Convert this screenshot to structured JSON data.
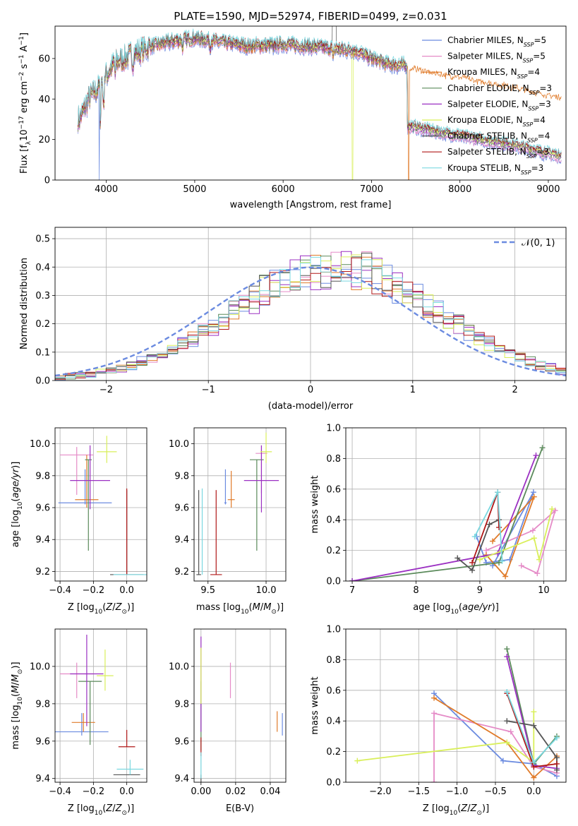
{
  "figure": {
    "title": "PLATE=1590, MJD=52974, FIBERID=0499, z=0.031",
    "colors": [
      "#6b8be0",
      "#e58bc7",
      "#e07b2a",
      "#5a8a5a",
      "#9b30c2",
      "#d9ef5a",
      "#555555",
      "#b01818",
      "#7ad8e0"
    ]
  },
  "chart_data": [
    {
      "id": "spectrum",
      "type": "line",
      "title": "PLATE=1590, MJD=52974, FIBERID=0499, z=0.031",
      "xlabel": "wavelength [Angstrom, rest frame]",
      "ylabel": "Flux [f",
      "ylabel_parts": [
        "Flux [f",
        "λ",
        "10",
        "−17",
        " erg cm",
        "−2",
        " s",
        "−1",
        " A",
        "−1",
        "]"
      ],
      "xlim": [
        3420,
        9200
      ],
      "ylim": [
        0,
        76
      ],
      "xticks": [
        4000,
        5000,
        6000,
        7000,
        8000,
        9000
      ],
      "yticks": [
        0,
        20,
        40,
        60
      ],
      "grid": false,
      "legend_position": "top-right",
      "legend": [
        {
          "name": "Chabrier MILES",
          "n": "5"
        },
        {
          "name": "Salpeter MILES",
          "n": "5"
        },
        {
          "name": "Kroupa MILES",
          "n": "4"
        },
        {
          "name": "Chabrier ELODIE",
          "n": "3"
        },
        {
          "name": "Salpeter ELODIE",
          "n": "3"
        },
        {
          "name": "Kroupa ELODIE",
          "n": "4"
        },
        {
          "name": "Chabrier STELIB",
          "n": "4"
        },
        {
          "name": "Salpeter STELIB",
          "n": "3"
        },
        {
          "name": "Kroupa STELIB",
          "n": "3"
        }
      ],
      "continuum": {
        "x": [
          3700,
          3800,
          3900,
          4000,
          4100,
          4300,
          4500,
          4700,
          5000,
          5300,
          5600,
          6000,
          6300,
          6500,
          6800,
          7000,
          7200,
          7500,
          7800,
          8000,
          8200,
          8500,
          8800,
          9100
        ],
        "y": [
          30,
          40,
          45,
          52,
          58,
          62,
          66,
          68,
          70,
          68,
          66,
          67,
          66,
          65,
          64,
          60,
          57,
          56,
          53,
          52,
          50,
          48,
          45,
          42
        ]
      },
      "features": {
        "gray_spike_x": [
          6560,
          6600
        ],
        "kroupa_elodie_dropout_x": 6785,
        "kroupa_miles_dropout_x": 7420,
        "blue_dropout_x": 3920
      }
    },
    {
      "id": "residuals",
      "type": "histogram",
      "xlabel": "(data-model)/error",
      "ylabel": "Normed distribution",
      "xlim": [
        -2.5,
        2.5
      ],
      "ylim": [
        0,
        0.54
      ],
      "xticks": [
        -2,
        -1,
        0,
        1,
        2
      ],
      "yticks": [
        0.0,
        0.1,
        0.2,
        0.3,
        0.4,
        0.5
      ],
      "grid": true,
      "legend_position": "top-right",
      "legend_label": "𝒩(0, 1)",
      "bin_width": 0.1,
      "mu": 0.25,
      "sigma": 1.0
    },
    {
      "id": "z-age",
      "type": "errorbar",
      "xlabel": "Z [log",
      "ylabel": "age  [log",
      "xlim": [
        -0.43,
        0.12
      ],
      "ylim": [
        9.14,
        10.1
      ],
      "xticks": [
        -0.4,
        -0.2,
        0.0
      ],
      "yticks": [
        9.2,
        9.4,
        9.6,
        9.8,
        10.0
      ],
      "grid": true,
      "points": [
        {
          "x": -0.25,
          "y": 9.63,
          "xerr": 0.16,
          "yerr_lo": 0.01,
          "yerr_hi": 0.21
        },
        {
          "x": -0.3,
          "y": 9.93,
          "xerr": 0.1,
          "yerr_lo": 0.25,
          "yerr_hi": 0.05
        },
        {
          "x": -0.24,
          "y": 9.65,
          "xerr": 0.07,
          "yerr_lo": 0.05,
          "yerr_hi": 0.28
        },
        {
          "x": -0.23,
          "y": 9.9,
          "xerr": 0.02,
          "yerr_lo": 0.57,
          "yerr_hi": 0.0
        },
        {
          "x": -0.22,
          "y": 9.77,
          "xerr": 0.12,
          "yerr_lo": 0.18,
          "yerr_hi": 0.22
        },
        {
          "x": -0.12,
          "y": 9.95,
          "xerr": 0.06,
          "yerr_lo": 0.07,
          "yerr_hi": 0.1
        },
        {
          "x": 0.0,
          "y": 9.18,
          "xerr": 0.1,
          "yerr_lo": 0.0,
          "yerr_hi": 0.53
        },
        {
          "x": 0.0,
          "y": 9.18,
          "xerr": 0.0,
          "yerr_lo": 0.0,
          "yerr_hi": 0.54
        },
        {
          "x": 0.02,
          "y": 9.18,
          "xerr": 0.1,
          "yerr_lo": 0.0,
          "yerr_hi": 0.0
        }
      ]
    },
    {
      "id": "mass-age",
      "type": "errorbar",
      "xlabel": "mass [log",
      "ylabel": "",
      "xlim": [
        9.38,
        10.17
      ],
      "ylim": [
        9.14,
        10.1
      ],
      "xticks": [
        9.5,
        10.0
      ],
      "yticks": [
        9.2,
        9.4,
        9.6,
        9.8,
        10.0
      ],
      "grid": true,
      "points": [
        {
          "x": 9.65,
          "y": 9.63,
          "xerr": 0.01,
          "yerr_lo": 0.01,
          "yerr_hi": 0.21
        },
        {
          "x": 9.96,
          "y": 9.94,
          "xerr": 0.05,
          "yerr_lo": 0.25,
          "yerr_hi": 0.05
        },
        {
          "x": 9.7,
          "y": 9.65,
          "xerr": 0.03,
          "yerr_lo": 0.05,
          "yerr_hi": 0.18
        },
        {
          "x": 9.92,
          "y": 9.9,
          "xerr": 0.06,
          "yerr_lo": 0.57,
          "yerr_hi": 0.0
        },
        {
          "x": 9.96,
          "y": 9.77,
          "xerr": 0.15,
          "yerr_lo": 0.2,
          "yerr_hi": 0.22
        },
        {
          "x": 10.0,
          "y": 9.95,
          "xerr": 0.05,
          "yerr_lo": 0.07,
          "yerr_hi": 0.12
        },
        {
          "x": 9.42,
          "y": 9.18,
          "xerr": 0.02,
          "yerr_lo": 0.0,
          "yerr_hi": 0.53
        },
        {
          "x": 9.57,
          "y": 9.18,
          "xerr": 0.05,
          "yerr_lo": 0.0,
          "yerr_hi": 0.53
        },
        {
          "x": 9.45,
          "y": 9.18,
          "xerr": 0.0,
          "yerr_lo": 0.0,
          "yerr_hi": 0.54
        }
      ]
    },
    {
      "id": "age-weight",
      "type": "line",
      "xlabel": "age  [log",
      "ylabel": "mass weight",
      "xlim": [
        6.9,
        10.35
      ],
      "ylim": [
        0,
        1
      ],
      "xticks": [
        7,
        8,
        9,
        10
      ],
      "yticks": [
        0.0,
        0.2,
        0.4,
        0.6,
        0.8,
        1.0
      ],
      "grid": true,
      "series": [
        {
          "x": [
            8.95,
            9.1,
            9.47,
            9.84,
            9.2
          ],
          "y": [
            0.29,
            0.12,
            0.14,
            0.58,
            0.1
          ]
        },
        {
          "x": [
            9.65,
            9.9,
            10.18,
            9.83,
            9.1
          ],
          "y": [
            0.1,
            0.05,
            0.46,
            0.33,
            0.2
          ]
        },
        {
          "x": [
            9.1,
            9.4,
            9.85,
            9.2
          ],
          "y": [
            0.17,
            0.03,
            0.55,
            0.26
          ]
        },
        {
          "x": [
            7.0,
            9.3,
            9.98
          ],
          "y": [
            0.0,
            0.12,
            0.87
          ]
        },
        {
          "x": [
            7.0,
            9.28,
            9.88
          ],
          "y": [
            0.0,
            0.18,
            0.82
          ]
        },
        {
          "x": [
            9.0,
            9.85,
            9.93,
            10.13
          ],
          "y": [
            0.14,
            0.28,
            0.14,
            0.47
          ]
        },
        {
          "x": [
            8.65,
            8.88,
            9.15,
            9.3
          ],
          "y": [
            0.15,
            0.07,
            0.37,
            0.4
          ]
        },
        {
          "x": [
            8.88,
            9.28,
            9.3
          ],
          "y": [
            0.12,
            0.58,
            0.35
          ]
        },
        {
          "x": [
            8.92,
            9.28,
            9.35
          ],
          "y": [
            0.29,
            0.58,
            0.13
          ]
        }
      ]
    },
    {
      "id": "z-mass",
      "type": "errorbar",
      "xlabel": "Z [log",
      "ylabel": "mass [log",
      "xlim": [
        -0.43,
        0.12
      ],
      "ylim": [
        9.38,
        10.2
      ],
      "xticks": [
        -0.4,
        -0.2,
        0.0
      ],
      "yticks": [
        9.4,
        9.6,
        9.8,
        10.0
      ],
      "grid": true,
      "points": [
        {
          "x": -0.27,
          "y": 9.65,
          "xerr": 0.16,
          "yerr_lo": 0.02,
          "yerr_hi": 0.1
        },
        {
          "x": -0.3,
          "y": 9.96,
          "xerr": 0.1,
          "yerr_lo": 0.13,
          "yerr_hi": 0.06
        },
        {
          "x": -0.26,
          "y": 9.7,
          "xerr": 0.07,
          "yerr_lo": 0.05,
          "yerr_hi": 0.05
        },
        {
          "x": -0.22,
          "y": 9.92,
          "xerr": 0.07,
          "yerr_lo": 0.34,
          "yerr_hi": 0.0
        },
        {
          "x": -0.24,
          "y": 9.96,
          "xerr": 0.1,
          "yerr_lo": 0.28,
          "yerr_hi": 0.21
        },
        {
          "x": -0.13,
          "y": 9.95,
          "xerr": 0.05,
          "yerr_lo": 0.08,
          "yerr_hi": 0.14
        },
        {
          "x": 0.0,
          "y": 9.42,
          "xerr": 0.08,
          "yerr_lo": 0.0,
          "yerr_hi": 0.0
        },
        {
          "x": 0.0,
          "y": 9.57,
          "xerr": 0.05,
          "yerr_lo": 0.0,
          "yerr_hi": 0.09
        },
        {
          "x": 0.02,
          "y": 9.45,
          "xerr": 0.08,
          "yerr_lo": 0.03,
          "yerr_hi": 0.05
        }
      ]
    },
    {
      "id": "ebv",
      "type": "errorbar",
      "xlabel": "E(B-V)",
      "ylabel": "",
      "xlim": [
        -0.004,
        0.049
      ],
      "ylim": [
        9.38,
        10.2
      ],
      "xticks": [
        0.0,
        0.02,
        0.04
      ],
      "yticks": [
        9.4,
        9.6,
        9.8,
        10.0
      ],
      "grid": true,
      "points": [
        {
          "x": 0.047,
          "y": 9.69,
          "xerr": 0.0,
          "yerr_lo": 0.06,
          "yerr_hi": 0.06
        },
        {
          "x": 0.017,
          "y": 9.95,
          "xerr": 0.0,
          "yerr_lo": 0.12,
          "yerr_hi": 0.07
        },
        {
          "x": 0.044,
          "y": 9.71,
          "xerr": 0.0,
          "yerr_lo": 0.06,
          "yerr_hi": 0.05
        },
        {
          "x": 0.0,
          "y": 9.92,
          "xerr": 0.0,
          "yerr_lo": 0.37,
          "yerr_hi": 0.0
        },
        {
          "x": 0.0,
          "y": 9.96,
          "xerr": 0.0,
          "yerr_lo": 0.31,
          "yerr_hi": 0.2
        },
        {
          "x": 0.0,
          "y": 9.95,
          "xerr": 0.0,
          "yerr_lo": 0.15,
          "yerr_hi": 0.15
        },
        {
          "x": 0.0,
          "y": 9.42,
          "xerr": 0.0,
          "yerr_lo": 0.04,
          "yerr_hi": 0.0
        },
        {
          "x": 0.0,
          "y": 9.57,
          "xerr": 0.0,
          "yerr_lo": 0.05,
          "yerr_hi": 0.05
        },
        {
          "x": 0.0,
          "y": 9.45,
          "xerr": 0.0,
          "yerr_lo": 0.05,
          "yerr_hi": 0.09
        }
      ]
    },
    {
      "id": "z-weight",
      "type": "line",
      "xlabel": "Z [log",
      "ylabel": "mass weight",
      "xlim": [
        -2.45,
        0.42
      ],
      "ylim": [
        0,
        1
      ],
      "xticks": [
        -2.0,
        -1.5,
        -1.0,
        -0.5,
        0.0
      ],
      "yticks": [
        0.0,
        0.2,
        0.4,
        0.6,
        0.8,
        1.0
      ],
      "grid": true,
      "series": [
        {
          "x": [
            -1.3,
            -0.4,
            0.0,
            0.3
          ],
          "y": [
            0.58,
            0.14,
            0.12,
            0.04
          ]
        },
        {
          "x": [
            -1.3,
            -1.3,
            -0.3,
            0.0,
            0.3
          ],
          "y": [
            0.0,
            0.45,
            0.33,
            0.1,
            0.06
          ]
        },
        {
          "x": [
            -1.3,
            -0.35,
            0.0,
            0.3
          ],
          "y": [
            0.55,
            0.26,
            0.03,
            0.17
          ]
        },
        {
          "x": [
            -0.35,
            0.0,
            0.3
          ],
          "y": [
            0.87,
            0.12,
            0.3
          ]
        },
        {
          "x": [
            -0.35,
            0.0,
            0.3
          ],
          "y": [
            0.82,
            0.11,
            0.09
          ]
        },
        {
          "x": [
            -2.3,
            -0.35,
            0.0,
            0.0
          ],
          "y": [
            0.14,
            0.26,
            0.13,
            0.46
          ]
        },
        {
          "x": [
            -0.35,
            0.0,
            0.3,
            0.3
          ],
          "y": [
            0.4,
            0.37,
            0.16,
            0.08
          ]
        },
        {
          "x": [
            -0.35,
            0.0,
            0.3
          ],
          "y": [
            0.58,
            0.1,
            0.12
          ]
        },
        {
          "x": [
            -0.35,
            0.0,
            0.3
          ],
          "y": [
            0.59,
            0.13,
            0.29
          ]
        }
      ]
    }
  ]
}
